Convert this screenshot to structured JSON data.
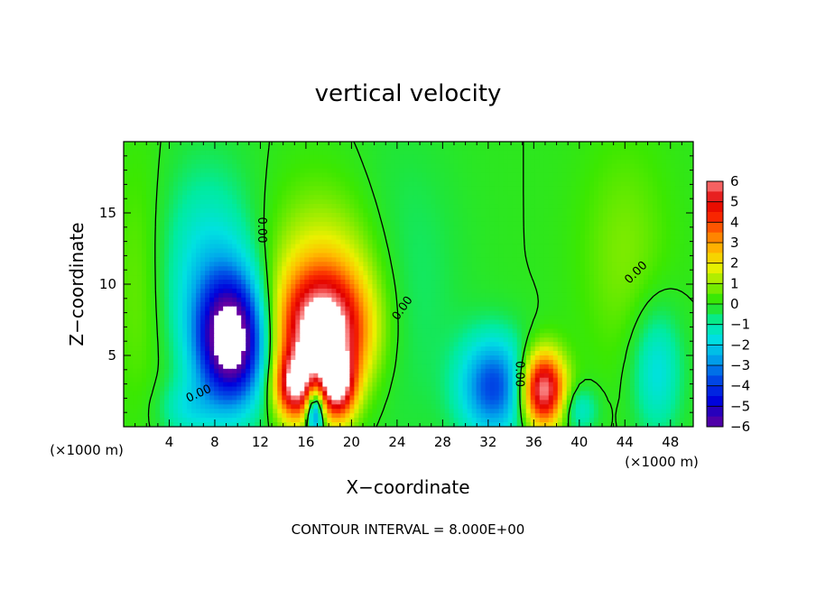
{
  "chart_data": {
    "type": "heatmap",
    "title": "vertical velocity",
    "xlabel": "X−coordinate",
    "ylabel": "Z−coordinate",
    "x_unit_left": "(×1000 m)",
    "x_unit_right": "(×1000 m)",
    "xlim": [
      0,
      50
    ],
    "ylim": [
      0,
      20
    ],
    "x_ticks": [
      4,
      8,
      12,
      16,
      20,
      24,
      28,
      32,
      36,
      40,
      44,
      48
    ],
    "x_tick_labels": [
      "4",
      "8",
      "12",
      "16",
      "20",
      "24",
      "28",
      "32",
      "36",
      "40",
      "44",
      "48"
    ],
    "y_ticks": [
      5,
      10,
      15
    ],
    "y_tick_labels": [
      "5",
      "10",
      "15"
    ],
    "colorbar": {
      "min": -6,
      "max": 6,
      "tick_values": [
        6,
        5,
        4,
        3,
        2,
        1,
        0,
        -1,
        -2,
        -3,
        -4,
        -5,
        -6
      ],
      "tick_labels": [
        "6",
        "5",
        "4",
        "3",
        "2",
        "1",
        "0",
        "−1",
        "−2",
        "−3",
        "−4",
        "−5",
        "−6"
      ]
    },
    "features": [
      {
        "x": 9.5,
        "z": 6.0,
        "rx": 3.0,
        "rz": 4.5,
        "w": -7.0
      },
      {
        "x": 17.5,
        "z": 6.5,
        "rx": 3.8,
        "rz": 4.2,
        "w": 6.5
      },
      {
        "x": 18.0,
        "z": 10.0,
        "rx": 6.0,
        "rz": 6.5,
        "w": 2.0
      },
      {
        "x": 15.0,
        "z": 2.8,
        "rx": 1.7,
        "rz": 2.3,
        "w": 5.0
      },
      {
        "x": 18.8,
        "z": 2.8,
        "rx": 1.5,
        "rz": 2.3,
        "w": 5.0
      },
      {
        "x": 16.8,
        "z": 1.2,
        "rx": 0.8,
        "rz": 1.8,
        "w": -5.0
      },
      {
        "x": 7.5,
        "z": 11.0,
        "rx": 4.5,
        "rz": 7.0,
        "w": -1.8
      },
      {
        "x": 36.8,
        "z": 2.6,
        "rx": 1.9,
        "rz": 2.6,
        "w": 6.5
      },
      {
        "x": 32.5,
        "z": 2.8,
        "rx": 3.0,
        "rz": 3.5,
        "w": -3.8
      },
      {
        "x": 46.8,
        "z": 4.0,
        "rx": 2.2,
        "rz": 4.5,
        "w": -1.8
      },
      {
        "x": 40.0,
        "z": 1.2,
        "rx": 1.6,
        "rz": 1.6,
        "w": -1.5
      },
      {
        "x": 5.5,
        "z": 1.2,
        "rx": 2.5,
        "rz": 2.0,
        "w": -1.2
      },
      {
        "x": 24.0,
        "z": 10.0,
        "rx": 5.0,
        "rz": 9.0,
        "w": -1.0
      },
      {
        "x": 44.0,
        "z": 12.0,
        "rx": 4.0,
        "rz": 8.0,
        "w": 0.8
      },
      {
        "x": 1.5,
        "z": 10.0,
        "rx": 2.5,
        "rz": 9.0,
        "w": 0.8
      }
    ],
    "contour_labels": [
      {
        "x": 12.1,
        "z": 13.8,
        "text": "0.00",
        "angle": 90
      },
      {
        "x": 24.5,
        "z": 8.3,
        "text": "0.00",
        "angle": -55
      },
      {
        "x": 34.7,
        "z": 3.7,
        "text": "0.00",
        "angle": 90
      },
      {
        "x": 45.0,
        "z": 10.8,
        "text": "0.00",
        "angle": -45
      },
      {
        "x": 6.6,
        "z": 2.3,
        "text": "0.00",
        "angle": -25
      }
    ]
  },
  "footer": {
    "contour_interval": "CONTOUR INTERVAL =  8.000E+00"
  }
}
